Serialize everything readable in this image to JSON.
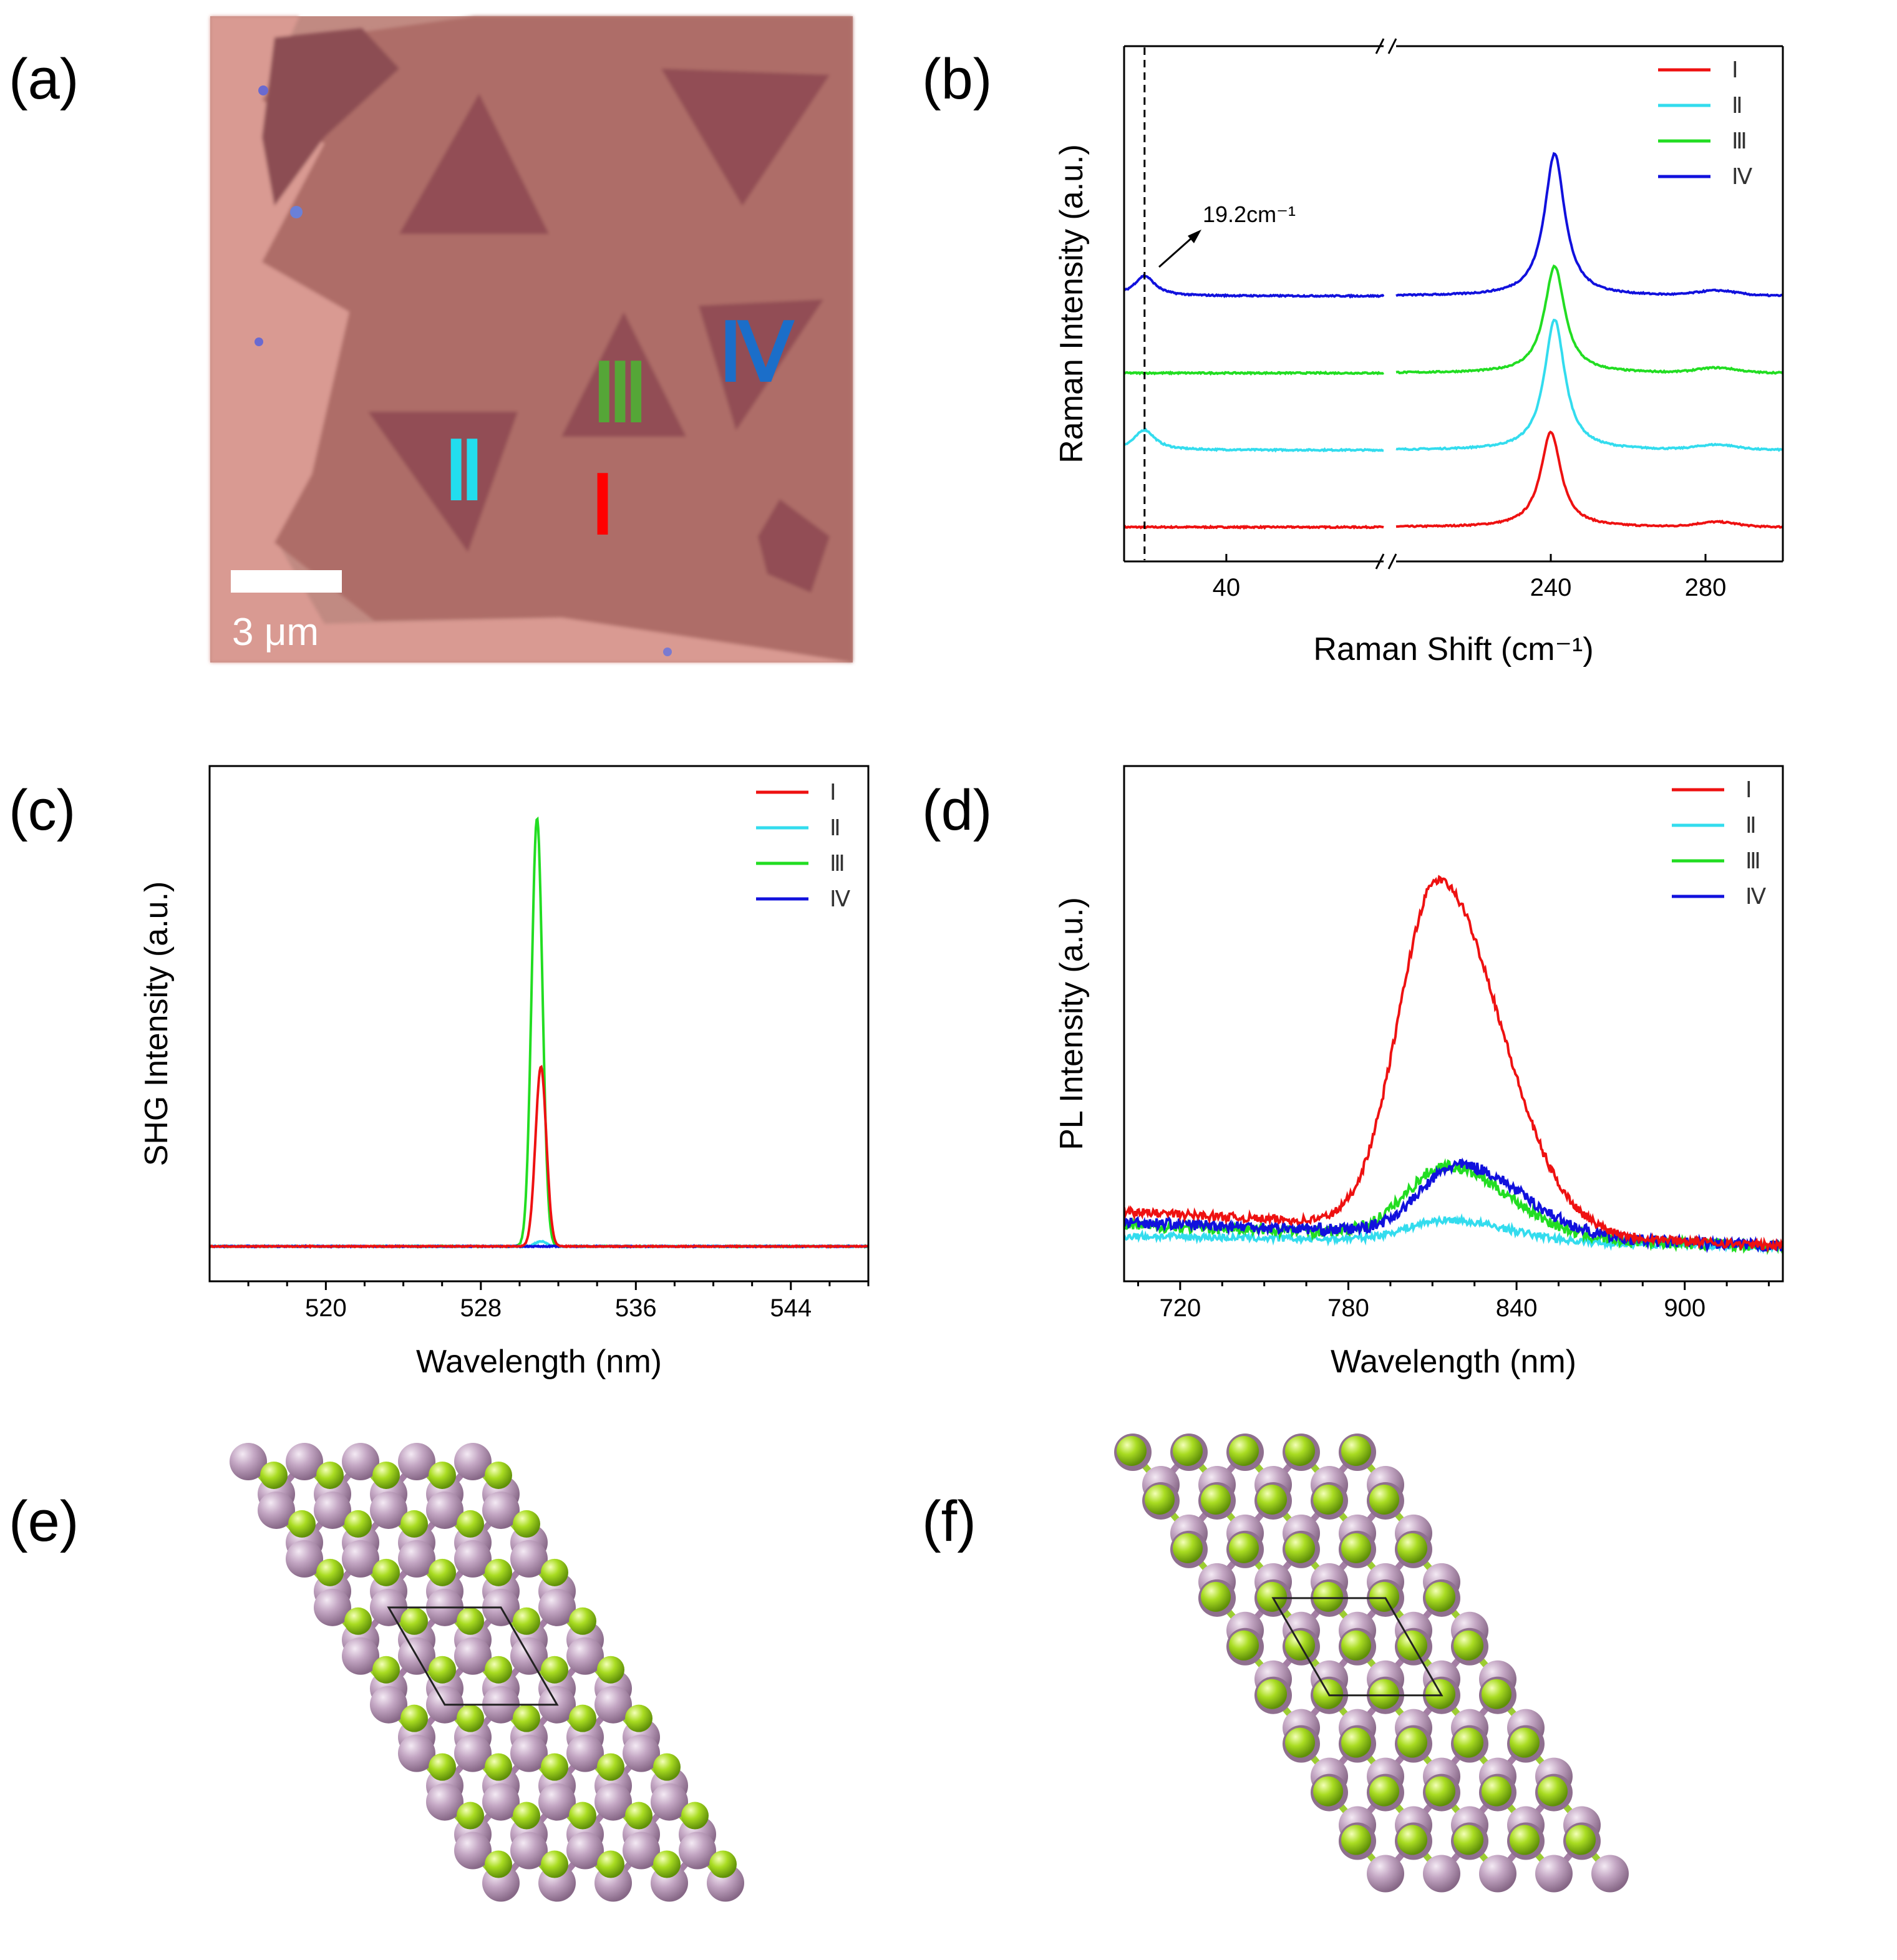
{
  "colors": {
    "I": "#ee1111",
    "II": "#33dcee",
    "III": "#22dd22",
    "IV": "#1111dd"
  },
  "panels": {
    "a": {
      "label": "(a)",
      "scale_bar_text": "3 μm",
      "region_labels": [
        "Ⅰ",
        "Ⅱ",
        "Ⅲ",
        "Ⅳ"
      ]
    },
    "b": {
      "label": "(b)",
      "annotation": "19.2cm⁻¹"
    },
    "c": {
      "label": "(c)"
    },
    "d": {
      "label": "(d)"
    },
    "e": {
      "label": "(e)"
    },
    "f": {
      "label": "(f)"
    }
  },
  "chart_data": [
    {
      "panel": "b",
      "type": "line",
      "xlabel": "Raman Shift (cm⁻¹)",
      "ylabel": "Raman Intensity (a.u.)",
      "x_broken_axis": {
        "left_range": [
          14,
          80
        ],
        "right_range": [
          200,
          300
        ]
      },
      "xticks": [
        40,
        240,
        280
      ],
      "xtick_labels": [
        "40",
        "240",
        "280"
      ],
      "legend": [
        "Ⅰ",
        "Ⅱ",
        "Ⅲ",
        "Ⅳ"
      ],
      "annotation_x": 19.2,
      "series": [
        {
          "name": "Ⅰ",
          "baseline": 0.0,
          "low_peak": 0.0,
          "main_peak_x": 240,
          "main_peak_height": 0.8
        },
        {
          "name": "Ⅱ",
          "baseline": 0.65,
          "low_peak": 0.17,
          "main_peak_x": 241,
          "main_peak_height": 1.1
        },
        {
          "name": "Ⅲ",
          "baseline": 1.3,
          "low_peak": 0.0,
          "main_peak_x": 241,
          "main_peak_height": 0.9
        },
        {
          "name": "Ⅳ",
          "baseline": 1.95,
          "low_peak": 0.17,
          "main_peak_x": 241,
          "main_peak_height": 1.2
        }
      ]
    },
    {
      "panel": "c",
      "type": "line",
      "xlabel": "Wavelength (nm)",
      "ylabel": "SHG Intensity (a.u.)",
      "xlim": [
        514,
        548
      ],
      "xticks": [
        520,
        528,
        536,
        544
      ],
      "xtick_labels": [
        "520",
        "528",
        "536",
        "544"
      ],
      "legend": [
        "Ⅰ",
        "Ⅱ",
        "Ⅲ",
        "Ⅳ"
      ],
      "series": [
        {
          "name": "Ⅰ",
          "peak_x": 531.1,
          "peak_height": 0.42
        },
        {
          "name": "Ⅱ",
          "peak_x": 531.1,
          "peak_height": 0.012
        },
        {
          "name": "Ⅲ",
          "peak_x": 530.9,
          "peak_height": 1.0
        },
        {
          "name": "Ⅳ",
          "peak_x": 531.0,
          "peak_height": 0.0
        }
      ]
    },
    {
      "panel": "d",
      "type": "line",
      "xlabel": "Wavelength (nm)",
      "ylabel": "PL Intensity (a.u.)",
      "xlim": [
        700,
        935
      ],
      "xticks": [
        720,
        780,
        840,
        900
      ],
      "xtick_labels": [
        "720",
        "780",
        "840",
        "900"
      ],
      "legend": [
        "Ⅰ",
        "Ⅱ",
        "Ⅲ",
        "Ⅳ"
      ],
      "series": [
        {
          "name": "Ⅰ",
          "peak_x": 812,
          "peak_height": 1.0,
          "baseline_start": 0.1
        },
        {
          "name": "Ⅱ",
          "peak_x": 815,
          "peak_height": 0.06,
          "baseline_start": 0.03
        },
        {
          "name": "Ⅲ",
          "peak_x": 815,
          "peak_height": 0.2,
          "baseline_start": 0.06
        },
        {
          "name": "Ⅳ",
          "peak_x": 820,
          "peak_height": 0.2,
          "baseline_start": 0.07
        }
      ]
    }
  ]
}
